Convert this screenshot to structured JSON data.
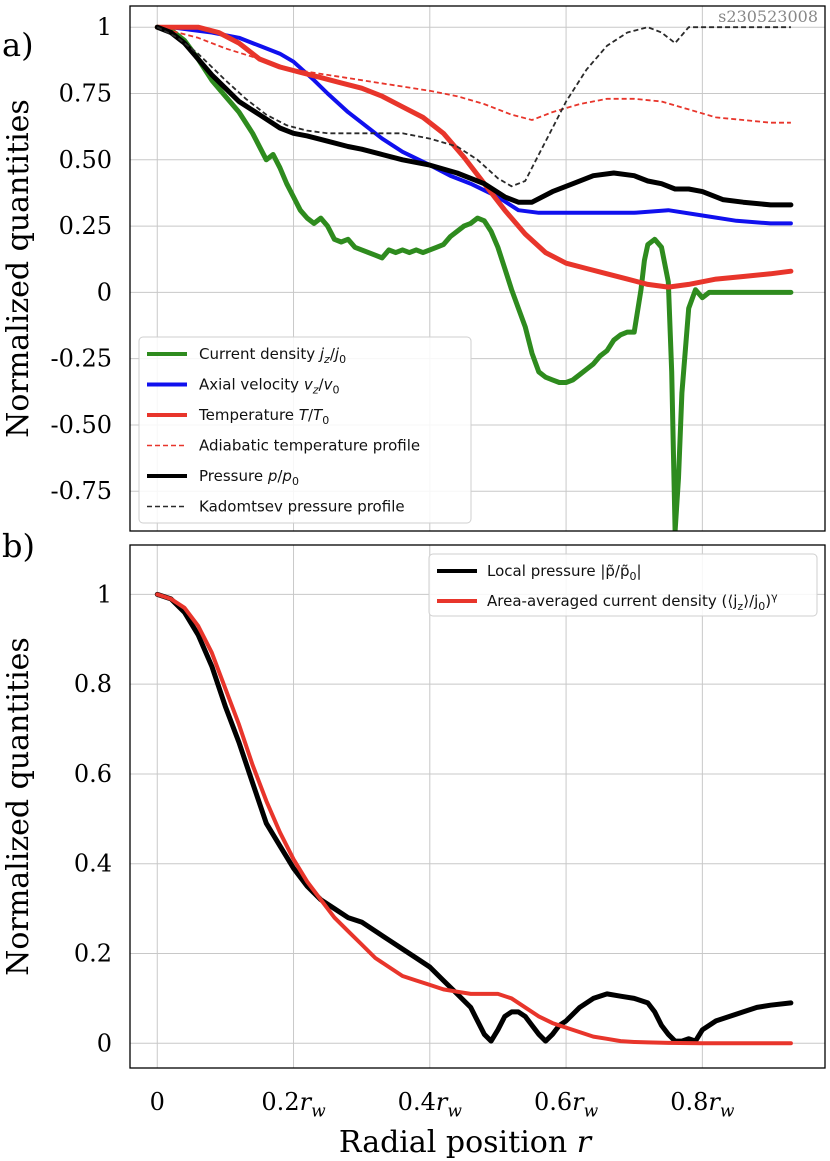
{
  "watermark": "s230523008",
  "shared": {
    "xlabel": "Radial position r",
    "xticks": [
      "0",
      "0.2r_w",
      "0.4r_w",
      "0.6r_w",
      "0.8r_w"
    ]
  },
  "chart_data": [
    {
      "panel_label": "a)",
      "type": "line",
      "ylabel": "Normalized quantities",
      "xlim": [
        -0.04,
        0.98
      ],
      "ylim": [
        -0.9,
        1.08
      ],
      "grid": true,
      "legend_position": "bottom-left",
      "xtick_values": [
        0,
        0.2,
        0.4,
        0.6,
        0.8
      ],
      "ytick_values": [
        1,
        0.75,
        0.5,
        0.25,
        0,
        -0.25,
        -0.5,
        -0.75
      ],
      "ytick_labels": [
        "1",
        "0.75",
        "0.50",
        "0.25",
        "0",
        "-0.25",
        "-0.50",
        "-0.75"
      ],
      "series": [
        {
          "name": "Current density j_z/j_0",
          "color": "#2e8b1e",
          "style": "solid",
          "width": 5,
          "x": [
            0,
            0.02,
            0.04,
            0.06,
            0.08,
            0.1,
            0.12,
            0.14,
            0.16,
            0.17,
            0.18,
            0.19,
            0.2,
            0.21,
            0.22,
            0.23,
            0.24,
            0.25,
            0.26,
            0.27,
            0.28,
            0.29,
            0.3,
            0.31,
            0.32,
            0.33,
            0.34,
            0.35,
            0.36,
            0.37,
            0.38,
            0.39,
            0.4,
            0.41,
            0.42,
            0.43,
            0.44,
            0.45,
            0.46,
            0.47,
            0.48,
            0.49,
            0.5,
            0.51,
            0.52,
            0.53,
            0.54,
            0.55,
            0.56,
            0.57,
            0.58,
            0.59,
            0.6,
            0.61,
            0.62,
            0.63,
            0.64,
            0.65,
            0.66,
            0.67,
            0.68,
            0.69,
            0.7,
            0.71,
            0.715,
            0.72,
            0.73,
            0.74,
            0.75,
            0.755,
            0.76,
            0.765,
            0.77,
            0.78,
            0.79,
            0.8,
            0.81,
            0.82,
            0.84,
            0.86,
            0.88,
            0.9,
            0.93
          ],
          "y": [
            1,
            0.99,
            0.95,
            0.88,
            0.8,
            0.74,
            0.68,
            0.6,
            0.5,
            0.52,
            0.47,
            0.41,
            0.36,
            0.31,
            0.28,
            0.26,
            0.28,
            0.25,
            0.2,
            0.19,
            0.2,
            0.17,
            0.16,
            0.15,
            0.14,
            0.13,
            0.16,
            0.15,
            0.16,
            0.15,
            0.16,
            0.15,
            0.16,
            0.17,
            0.18,
            0.21,
            0.23,
            0.25,
            0.26,
            0.28,
            0.27,
            0.23,
            0.17,
            0.09,
            0.01,
            -0.06,
            -0.13,
            -0.23,
            -0.3,
            -0.32,
            -0.33,
            -0.34,
            -0.34,
            -0.33,
            -0.31,
            -0.29,
            -0.27,
            -0.24,
            -0.22,
            -0.18,
            -0.16,
            -0.15,
            -0.15,
            0.01,
            0.12,
            0.18,
            0.2,
            0.17,
            0.04,
            -0.3,
            -0.9,
            -0.7,
            -0.38,
            -0.06,
            0.01,
            -0.02,
            0.0,
            0.0,
            0.0,
            0.0,
            0.0,
            0.0,
            0.0
          ]
        },
        {
          "name": "Axial velocity v_z/v_0",
          "color": "#1010ee",
          "style": "solid",
          "width": 4,
          "x": [
            0,
            0.02,
            0.05,
            0.08,
            0.1,
            0.12,
            0.15,
            0.18,
            0.2,
            0.23,
            0.25,
            0.28,
            0.3,
            0.33,
            0.36,
            0.4,
            0.43,
            0.46,
            0.5,
            0.53,
            0.56,
            0.6,
            0.65,
            0.7,
            0.75,
            0.8,
            0.85,
            0.9,
            0.93
          ],
          "y": [
            1,
            1.0,
            0.99,
            0.98,
            0.97,
            0.96,
            0.93,
            0.9,
            0.87,
            0.8,
            0.75,
            0.68,
            0.64,
            0.58,
            0.53,
            0.48,
            0.44,
            0.41,
            0.36,
            0.31,
            0.3,
            0.3,
            0.3,
            0.3,
            0.31,
            0.29,
            0.27,
            0.26,
            0.26
          ]
        },
        {
          "name": "Temperature T/T_0",
          "color": "#e8352b",
          "style": "solid",
          "width": 5,
          "x": [
            0,
            0.03,
            0.06,
            0.09,
            0.12,
            0.15,
            0.18,
            0.21,
            0.24,
            0.27,
            0.3,
            0.33,
            0.36,
            0.39,
            0.42,
            0.45,
            0.48,
            0.51,
            0.54,
            0.57,
            0.6,
            0.63,
            0.66,
            0.69,
            0.72,
            0.75,
            0.78,
            0.82,
            0.86,
            0.9,
            0.93
          ],
          "y": [
            1,
            1.0,
            1.0,
            0.98,
            0.94,
            0.88,
            0.85,
            0.83,
            0.81,
            0.79,
            0.77,
            0.74,
            0.7,
            0.66,
            0.6,
            0.51,
            0.41,
            0.31,
            0.22,
            0.15,
            0.11,
            0.09,
            0.07,
            0.05,
            0.03,
            0.02,
            0.03,
            0.05,
            0.06,
            0.07,
            0.08
          ]
        },
        {
          "name": "Adiabatic temperature profile",
          "color": "#e8352b",
          "style": "dashed",
          "width": 1.8,
          "x": [
            0,
            0.03,
            0.06,
            0.1,
            0.15,
            0.2,
            0.25,
            0.3,
            0.35,
            0.4,
            0.44,
            0.48,
            0.52,
            0.55,
            0.58,
            0.62,
            0.66,
            0.7,
            0.74,
            0.78,
            0.82,
            0.86,
            0.9,
            0.93
          ],
          "y": [
            1,
            0.98,
            0.96,
            0.92,
            0.88,
            0.84,
            0.82,
            0.8,
            0.78,
            0.76,
            0.74,
            0.71,
            0.67,
            0.65,
            0.68,
            0.71,
            0.73,
            0.73,
            0.72,
            0.69,
            0.66,
            0.65,
            0.64,
            0.64
          ]
        },
        {
          "name": "Pressure p/p_0",
          "color": "#000000",
          "style": "solid",
          "width": 5,
          "x": [
            0,
            0.02,
            0.04,
            0.06,
            0.08,
            0.1,
            0.12,
            0.15,
            0.18,
            0.2,
            0.22,
            0.25,
            0.28,
            0.3,
            0.33,
            0.36,
            0.4,
            0.44,
            0.48,
            0.51,
            0.53,
            0.55,
            0.58,
            0.61,
            0.64,
            0.67,
            0.7,
            0.72,
            0.74,
            0.76,
            0.78,
            0.8,
            0.83,
            0.86,
            0.9,
            0.93
          ],
          "y": [
            1,
            0.98,
            0.94,
            0.88,
            0.82,
            0.77,
            0.72,
            0.67,
            0.62,
            0.6,
            0.59,
            0.57,
            0.55,
            0.54,
            0.52,
            0.5,
            0.48,
            0.45,
            0.41,
            0.36,
            0.34,
            0.34,
            0.38,
            0.41,
            0.44,
            0.45,
            0.44,
            0.42,
            0.41,
            0.39,
            0.39,
            0.38,
            0.35,
            0.34,
            0.33,
            0.33
          ]
        },
        {
          "name": "Kadomtsev pressure profile",
          "color": "#2a2a2a",
          "style": "dashed",
          "width": 1.8,
          "x": [
            0,
            0.03,
            0.06,
            0.1,
            0.13,
            0.16,
            0.19,
            0.22,
            0.25,
            0.28,
            0.32,
            0.36,
            0.4,
            0.44,
            0.47,
            0.5,
            0.52,
            0.54,
            0.56,
            0.58,
            0.6,
            0.63,
            0.66,
            0.69,
            0.72,
            0.74,
            0.75,
            0.76,
            0.78,
            0.8,
            0.85,
            0.9,
            0.93
          ],
          "y": [
            1,
            0.96,
            0.9,
            0.8,
            0.73,
            0.67,
            0.63,
            0.61,
            0.6,
            0.6,
            0.6,
            0.6,
            0.58,
            0.55,
            0.5,
            0.43,
            0.4,
            0.42,
            0.52,
            0.62,
            0.72,
            0.84,
            0.93,
            0.98,
            1.0,
            0.98,
            0.96,
            0.94,
            1.0,
            1.0,
            1.0,
            1.0,
            1.0
          ]
        }
      ]
    },
    {
      "panel_label": "b)",
      "type": "line",
      "ylabel": "Normalized quantities",
      "xlim": [
        -0.04,
        0.98
      ],
      "ylim": [
        -0.055,
        1.11
      ],
      "grid": true,
      "legend_position": "top-right",
      "xtick_values": [
        0,
        0.2,
        0.4,
        0.6,
        0.8
      ],
      "ytick_values": [
        1,
        0.8,
        0.6,
        0.4,
        0.2,
        0
      ],
      "ytick_labels": [
        "1",
        "0.8",
        "0.6",
        "0.4",
        "0.2",
        "0"
      ],
      "series": [
        {
          "name": "Local pressure |p̃/p̃_0|",
          "color": "#000000",
          "style": "solid",
          "width": 5,
          "x": [
            0,
            0.02,
            0.04,
            0.06,
            0.08,
            0.1,
            0.12,
            0.14,
            0.16,
            0.18,
            0.2,
            0.22,
            0.24,
            0.26,
            0.28,
            0.3,
            0.32,
            0.34,
            0.36,
            0.38,
            0.4,
            0.42,
            0.44,
            0.46,
            0.47,
            0.48,
            0.49,
            0.5,
            0.51,
            0.52,
            0.53,
            0.54,
            0.55,
            0.56,
            0.57,
            0.58,
            0.59,
            0.6,
            0.62,
            0.64,
            0.66,
            0.68,
            0.7,
            0.72,
            0.73,
            0.74,
            0.75,
            0.76,
            0.77,
            0.78,
            0.79,
            0.8,
            0.82,
            0.84,
            0.86,
            0.88,
            0.9,
            0.93
          ],
          "y": [
            1,
            0.99,
            0.96,
            0.91,
            0.84,
            0.75,
            0.67,
            0.58,
            0.49,
            0.44,
            0.39,
            0.35,
            0.32,
            0.3,
            0.28,
            0.27,
            0.25,
            0.23,
            0.21,
            0.19,
            0.17,
            0.14,
            0.11,
            0.08,
            0.05,
            0.02,
            0.005,
            0.03,
            0.06,
            0.07,
            0.07,
            0.06,
            0.04,
            0.02,
            0.005,
            0.02,
            0.04,
            0.05,
            0.08,
            0.1,
            0.11,
            0.105,
            0.1,
            0.09,
            0.07,
            0.04,
            0.02,
            0.005,
            0.005,
            0.01,
            0.005,
            0.03,
            0.05,
            0.06,
            0.07,
            0.08,
            0.085,
            0.09
          ]
        },
        {
          "name": "Area-averaged current density (⟨j_z⟩/j_0)^γ",
          "color": "#e8352b",
          "style": "solid",
          "width": 4,
          "x": [
            0,
            0.02,
            0.04,
            0.06,
            0.08,
            0.1,
            0.12,
            0.14,
            0.16,
            0.18,
            0.2,
            0.22,
            0.24,
            0.26,
            0.28,
            0.3,
            0.32,
            0.34,
            0.36,
            0.38,
            0.4,
            0.42,
            0.44,
            0.46,
            0.48,
            0.5,
            0.52,
            0.54,
            0.56,
            0.58,
            0.6,
            0.62,
            0.64,
            0.66,
            0.68,
            0.7,
            0.72,
            0.75,
            0.8,
            0.85,
            0.9,
            0.93
          ],
          "y": [
            1,
            0.99,
            0.97,
            0.93,
            0.87,
            0.79,
            0.71,
            0.62,
            0.54,
            0.47,
            0.41,
            0.36,
            0.32,
            0.28,
            0.25,
            0.22,
            0.19,
            0.17,
            0.15,
            0.14,
            0.13,
            0.12,
            0.115,
            0.11,
            0.11,
            0.11,
            0.1,
            0.08,
            0.06,
            0.045,
            0.035,
            0.025,
            0.015,
            0.01,
            0.005,
            0.003,
            0.002,
            0.001,
            0.0,
            0.0,
            0.0,
            0.0
          ]
        }
      ]
    }
  ]
}
